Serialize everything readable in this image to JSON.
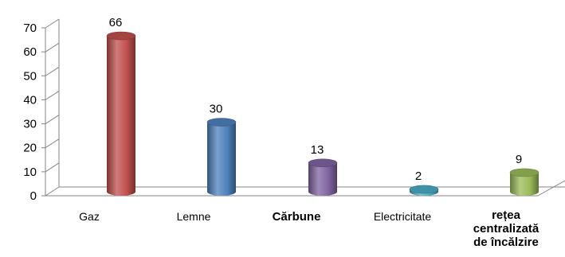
{
  "chart_data": {
    "type": "bar",
    "categories": [
      "Gaz",
      "Lemne",
      "Cărbune",
      "Electricitate",
      "rețea centralizată de încălzire"
    ],
    "category_lines": [
      [
        "Gaz"
      ],
      [
        "Lemne"
      ],
      [
        "Cărbune"
      ],
      [
        "Electricitate"
      ],
      [
        "rețea",
        "centralizată",
        "de încălzire"
      ]
    ],
    "values": [
      66,
      30,
      13,
      2,
      9
    ],
    "data_labels": [
      "66",
      "30",
      "13",
      "2",
      "9"
    ],
    "yticks": [
      "0",
      "10",
      "20",
      "30",
      "40",
      "50",
      "60",
      "70"
    ],
    "ylim": [
      0,
      70
    ],
    "title": "",
    "xlabel": "",
    "ylabel": "",
    "grid": false,
    "legend": "none",
    "colors": [
      "#c0504d",
      "#4f81bd",
      "#8064a2",
      "#4bacc6",
      "#9bbb59"
    ]
  }
}
